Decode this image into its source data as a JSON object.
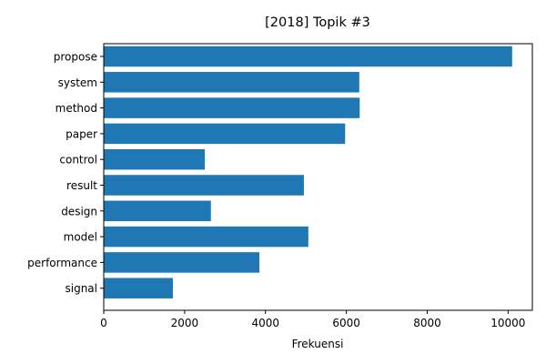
{
  "chart_data": {
    "type": "bar",
    "orientation": "horizontal",
    "title": "[2018] Topik #3",
    "xlabel": "Frekuensi",
    "ylabel": "",
    "categories": [
      "propose",
      "system",
      "method",
      "paper",
      "control",
      "result",
      "design",
      "model",
      "performance",
      "signal"
    ],
    "values": [
      10100,
      6320,
      6330,
      5970,
      2500,
      4950,
      2650,
      5060,
      3850,
      1710
    ],
    "xlim": [
      0,
      10600
    ],
    "xticks": [
      0,
      2000,
      4000,
      6000,
      8000,
      10000
    ],
    "xtick_labels": [
      "0",
      "2000",
      "4000",
      "6000",
      "8000",
      "10000"
    ],
    "grid": false,
    "bar_color": "#1f77b4"
  }
}
